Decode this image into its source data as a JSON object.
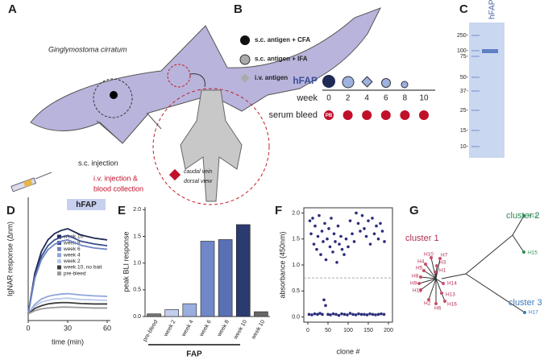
{
  "panel_labels": [
    "A",
    "B",
    "C",
    "D",
    "E",
    "F",
    "G"
  ],
  "panel_a": {
    "species": "Ginglymostoma cirratum",
    "sc": "s.c. injection",
    "iv1": "i.v. injection &",
    "iv2": "blood collection",
    "view1": "caudal vein",
    "view2": "dorsal view"
  },
  "panel_b": {
    "legend": [
      "s.c. antigen + CFA",
      "s.c. antigen + IFA",
      "i.v. antigen"
    ],
    "antigen": "hFAP",
    "week_label": "week",
    "weeks": [
      "0",
      "2",
      "4",
      "6",
      "8",
      "10"
    ],
    "bleed_label": "serum bleed",
    "pb": "PB"
  },
  "panel_c": {
    "lane": "hFAP",
    "ladder": [
      "250-",
      "100-",
      "75-",
      "50-",
      "37-",
      "25-",
      "15-",
      "10-"
    ]
  },
  "chart_data": [
    {
      "type": "line",
      "ylabel": "IgNAR response (Δnm)",
      "xlabel": "time (min)",
      "annotation": "hFAP",
      "x": [
        0,
        5,
        10,
        15,
        20,
        25,
        30,
        40,
        50,
        60
      ],
      "xlim": [
        0,
        60
      ],
      "xticks": [
        0,
        30,
        60
      ],
      "ylim": [
        -0.15,
        2.6
      ],
      "series": [
        {
          "name": "week 10",
          "color": "#1f2a55",
          "values": [
            0,
            0.9,
            1.39,
            1.65,
            1.79,
            1.86,
            1.9,
            1.76,
            1.69,
            1.65
          ]
        },
        {
          "name": "week 8",
          "color": "#3a4f8f",
          "values": [
            0,
            0.83,
            1.28,
            1.52,
            1.65,
            1.71,
            1.75,
            1.62,
            1.56,
            1.52
          ]
        },
        {
          "name": "week 6",
          "color": "#6f86c6",
          "values": [
            0,
            0.79,
            1.21,
            1.43,
            1.55,
            1.62,
            1.65,
            1.53,
            1.47,
            1.44
          ]
        },
        {
          "name": "week 4",
          "color": "#8fa4d8",
          "values": [
            0,
            0.21,
            0.33,
            0.39,
            0.42,
            0.44,
            0.45,
            0.42,
            0.4,
            0.39
          ]
        },
        {
          "name": "week 2",
          "color": "#b9c6ea",
          "values": [
            0,
            0.17,
            0.26,
            0.3,
            0.33,
            0.34,
            0.35,
            0.32,
            0.31,
            0.3
          ]
        },
        {
          "name": "week 10, no bait",
          "color": "#3b3b3b",
          "values": [
            0,
            0.12,
            0.18,
            0.22,
            0.24,
            0.25,
            0.25,
            0.23,
            0.22,
            0.22
          ]
        },
        {
          "name": "pre-bleed",
          "color": "#9a9a9a",
          "values": [
            0,
            0.07,
            0.11,
            0.13,
            0.14,
            0.15,
            0.15,
            0.14,
            0.13,
            0.13
          ]
        }
      ]
    },
    {
      "type": "bar",
      "ylabel": "peak BLI response",
      "group_label": "FAP",
      "categories": [
        "pre-bleed",
        "week 2",
        "week 4",
        "week 6",
        "week 8",
        "week 10",
        "week 10"
      ],
      "values": [
        0.05,
        0.13,
        0.24,
        1.41,
        1.44,
        1.72,
        0.09
      ],
      "colors": [
        "#777777",
        "#c3cdee",
        "#9aaee0",
        "#7088c8",
        "#5a70b5",
        "#2b3b70",
        "#666666"
      ],
      "ylim": [
        0,
        2.05
      ],
      "yticks": [
        {
          "value": 0,
          "label": "0.0"
        },
        0.5,
        {
          "value": 1,
          "label": "1.0"
        },
        1.5,
        {
          "value": 2,
          "label": "2.0"
        }
      ]
    },
    {
      "type": "scatter",
      "ylabel": "absorbance (450nm)",
      "xlabel": "clone #",
      "color": "#2b2d7a",
      "threshold": 0.75,
      "x": [
        5,
        8,
        12,
        15,
        18,
        22,
        25,
        28,
        32,
        35,
        38,
        42,
        45,
        48,
        52,
        55,
        58,
        62,
        65,
        68,
        72,
        75,
        78,
        82,
        85,
        90,
        95,
        100,
        105,
        110,
        115,
        120,
        125,
        130,
        135,
        140,
        145,
        150,
        155,
        160,
        165,
        170,
        175,
        180,
        185,
        190,
        3,
        10,
        17,
        24,
        30,
        36,
        40,
        44,
        50,
        56,
        63,
        70,
        77,
        84,
        91,
        98,
        105,
        112,
        119,
        126,
        133,
        140,
        147,
        154,
        161,
        168,
        175,
        182,
        189
      ],
      "values": [
        1.85,
        1.6,
        1.9,
        1.4,
        1.75,
        1.3,
        1.55,
        1.95,
        1.2,
        1.65,
        1.45,
        1.8,
        1.1,
        1.5,
        1.7,
        1.35,
        1.9,
        1.25,
        1.6,
        1.45,
        1.05,
        1.75,
        1.4,
        1.55,
        1.3,
        1.2,
        1.5,
        1.35,
        1.85,
        1.6,
        1.45,
        2.0,
        1.8,
        1.65,
        1.95,
        1.7,
        1.55,
        1.85,
        1.4,
        1.9,
        1.6,
        1.75,
        1.5,
        1.8,
        1.65,
        1.45,
        0.05,
        0.04,
        0.06,
        0.05,
        0.07,
        0.05,
        0.33,
        0.22,
        0.05,
        0.04,
        0.06,
        0.05,
        0.03,
        0.06,
        0.05,
        0.04,
        0.07,
        0.05,
        0.04,
        0.06,
        0.05,
        0.05,
        0.04,
        0.06,
        0.05,
        0.04,
        0.05,
        0.06,
        0.05
      ],
      "xlim": [
        -10,
        210
      ],
      "xticks": [
        0,
        50,
        100,
        150,
        200
      ],
      "ylim": [
        -0.1,
        2.1
      ],
      "yticks": [
        {
          "value": 0,
          "label": "0.0"
        },
        0.5,
        {
          "value": 1,
          "label": "1.0"
        },
        1.5,
        {
          "value": 2,
          "label": "2.0"
        }
      ]
    }
  ],
  "panel_g": {
    "clusters": [
      "cluster 1",
      "cluster 2",
      "cluster 3"
    ],
    "leaves": [
      "H10",
      "H7",
      "H4",
      "H3",
      "H5",
      "H1",
      "H8",
      "H9",
      "H14",
      "H11",
      "H13",
      "H2",
      "H6",
      "H16",
      "H12",
      "H15",
      "H17"
    ]
  }
}
